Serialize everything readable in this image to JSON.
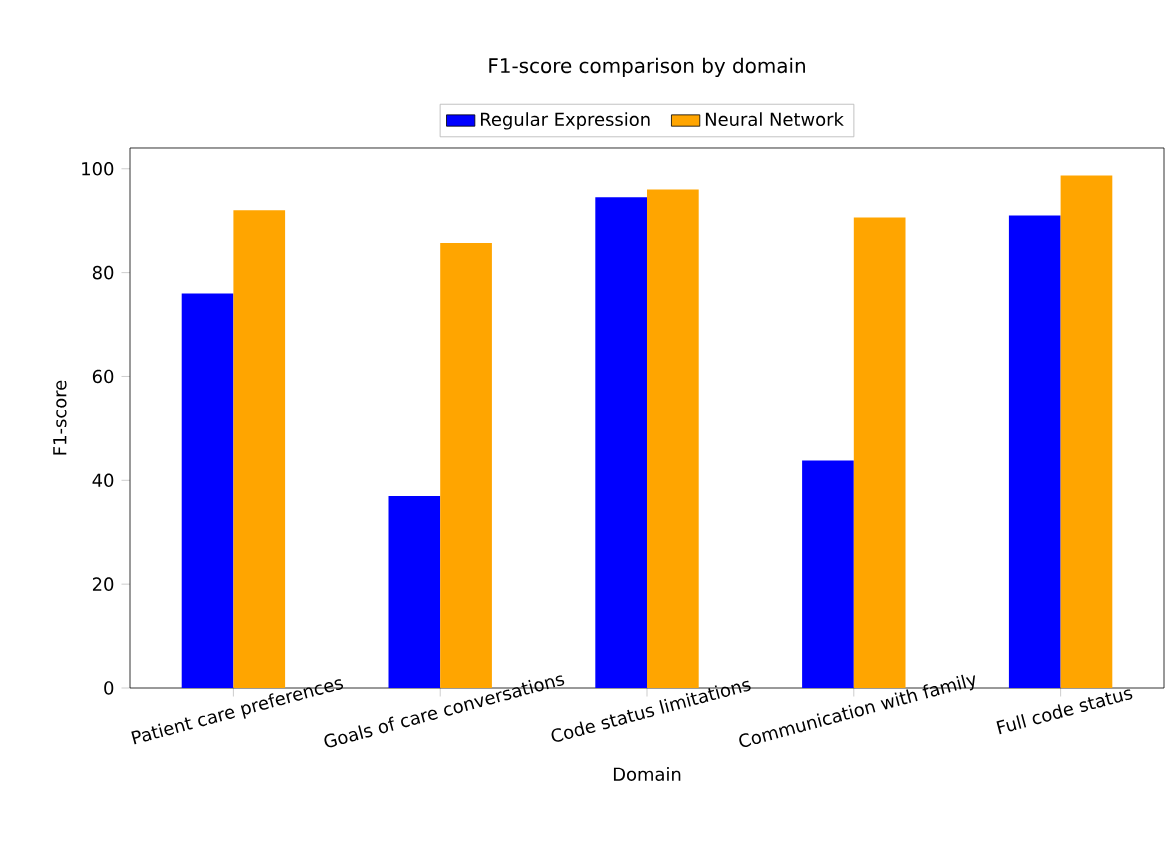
{
  "chart_data": {
    "type": "bar",
    "title": "F1-score comparison by domain",
    "xlabel": "Domain",
    "ylabel": "F1-score",
    "categories": [
      "Patient care preferences",
      "Goals of care conversations",
      "Code status limitations",
      "Communication with family",
      "Full code status"
    ],
    "series": [
      {
        "name": "Regular Expression",
        "color": "#0000ff",
        "values": [
          76,
          37,
          94.5,
          43.8,
          91
        ]
      },
      {
        "name": "Neural Network",
        "color": "#ffa500",
        "values": [
          92,
          85.7,
          96,
          90.6,
          98.7
        ]
      }
    ],
    "ylim": [
      0,
      104
    ],
    "yticks": [
      0,
      20,
      40,
      60,
      80,
      100
    ],
    "legend": "top",
    "grid": false
  }
}
